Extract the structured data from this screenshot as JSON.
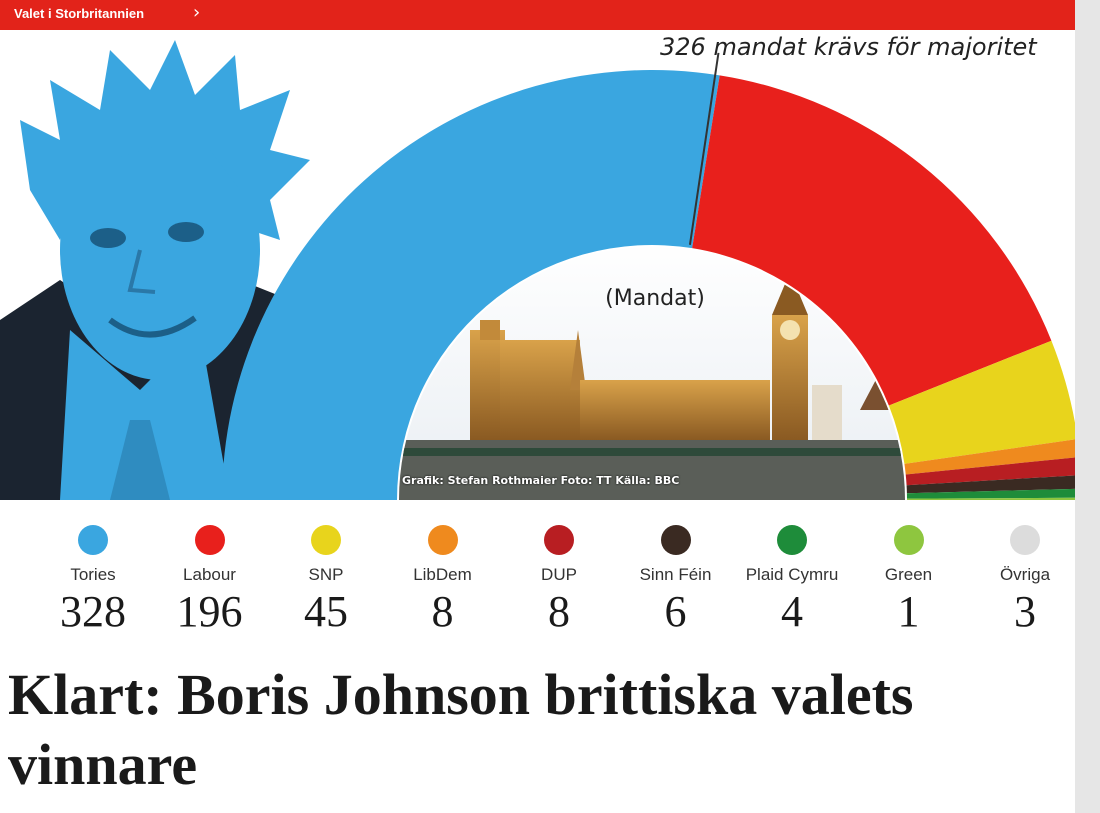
{
  "header": {
    "section_label": "Valet i Storbritannien"
  },
  "chart_data": {
    "type": "pie",
    "variant": "semicircle-parliament",
    "title": "",
    "unit_label": "(Mandat)",
    "majority_label": "326 mandat krävs för majoritet",
    "majority": 326,
    "series": [
      {
        "name": "Tories",
        "value": 328,
        "color": "#3aa6e0"
      },
      {
        "name": "Labour",
        "value": 196,
        "color": "#e8201c"
      },
      {
        "name": "SNP",
        "value": 45,
        "color": "#e8d41c"
      },
      {
        "name": "LibDem",
        "value": 8,
        "color": "#ef8a1e"
      },
      {
        "name": "DUP",
        "value": 8,
        "color": "#b81e22"
      },
      {
        "name": "Sinn Féin",
        "value": 6,
        "color": "#3a2a22"
      },
      {
        "name": "Plaid Cymru",
        "value": 4,
        "color": "#1e8c3a"
      },
      {
        "name": "Green",
        "value": 1,
        "color": "#8ec63f"
      },
      {
        "name": "Övriga",
        "value": 3,
        "color": "#dcdcdc"
      }
    ]
  },
  "credit": "Grafik: Stefan Rothmaier Foto: TT Källa: BBC",
  "headline": "Klart: Boris Johnson brittiska valets vinnare"
}
